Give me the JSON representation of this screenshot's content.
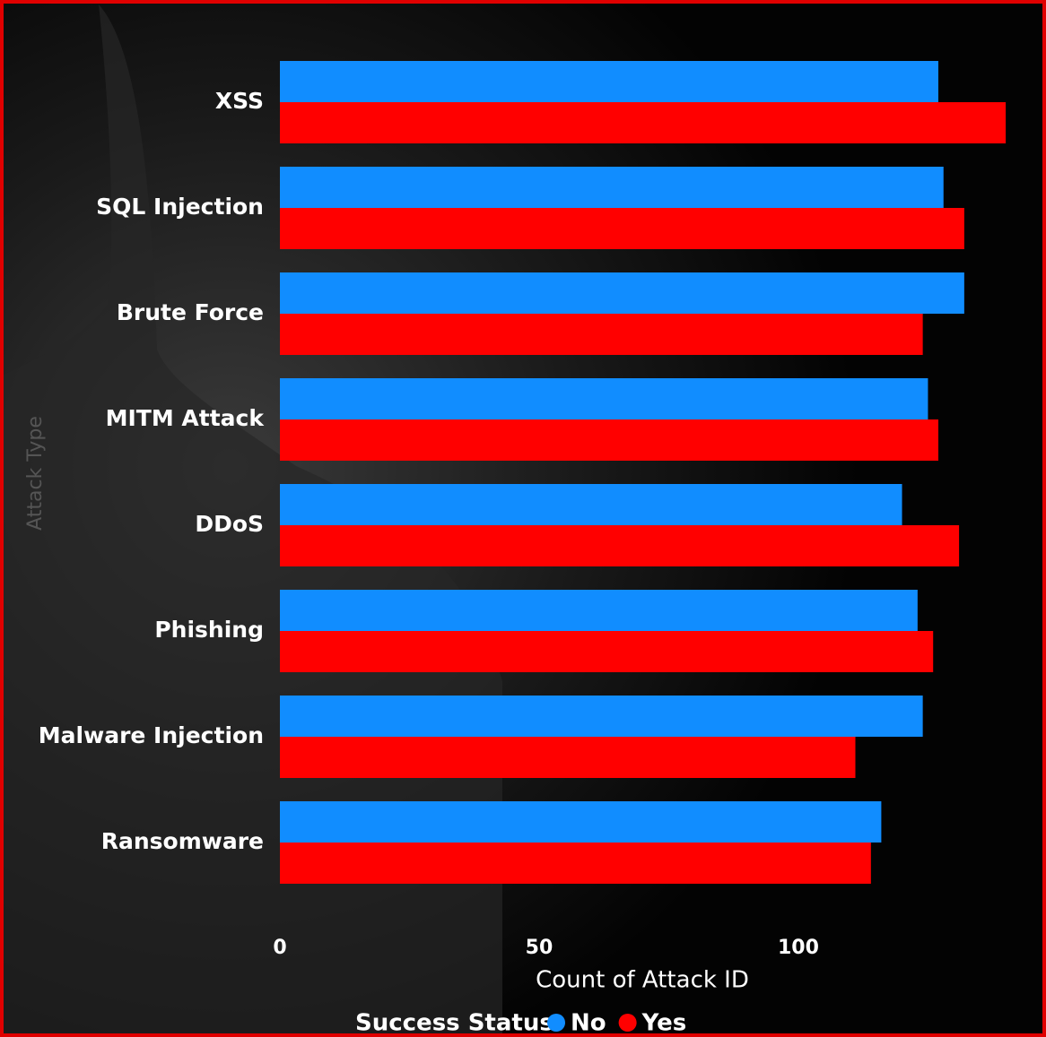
{
  "chart_data": {
    "type": "hbar",
    "categories": [
      "XSS",
      "SQL Injection",
      "Brute Force",
      "MITM Attack",
      "DDoS",
      "Phishing",
      "Malware Injection",
      "Ransomware"
    ],
    "series": [
      {
        "name": "No",
        "color": "#118dff",
        "values": [
          127,
          128,
          132,
          125,
          120,
          123,
          124,
          116
        ]
      },
      {
        "name": "Yes",
        "color": "#ff0000",
        "values": [
          140,
          132,
          124,
          127,
          131,
          126,
          111,
          114
        ]
      }
    ],
    "xlim": [
      0,
      145
    ],
    "xticks": [
      0,
      50,
      100
    ],
    "xlabel": "Count of Attack ID",
    "ylabel": "Attack Type",
    "legend_title": "Success Status"
  }
}
